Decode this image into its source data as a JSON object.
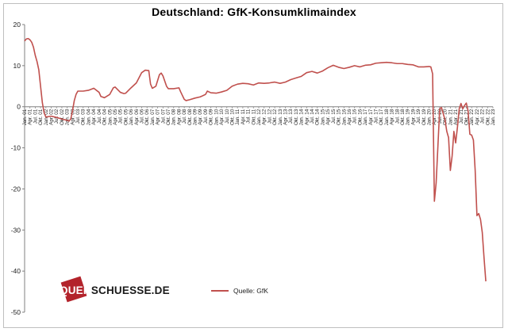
{
  "chart_data": {
    "type": "line",
    "title": "Deutschland:  GfK-Konsumklimaindex",
    "xlabel": "",
    "ylabel": "",
    "ylim": [
      -50,
      20
    ],
    "yticks": [
      20,
      10,
      0,
      -10,
      -20,
      -30,
      -40,
      -50
    ],
    "grid": false,
    "legend": "bottom-center",
    "x_tick_labels": [
      "Jan. 01",
      "Apr. 01",
      "Jul. 01",
      "Okt. 01",
      "Jan. 02",
      "Apr. 02",
      "Jul. 02",
      "Okt. 02",
      "Jan. 03",
      "Apr. 03",
      "Jul. 03",
      "Okt. 03",
      "Jan. 04",
      "Apr. 04",
      "Jul. 04",
      "Okt. 04",
      "Jan. 05",
      "Apr. 05",
      "Jul. 05",
      "Okt. 05",
      "Jan. 06",
      "Apr. 06",
      "Jul. 06",
      "Okt. 06",
      "Jan. 07",
      "Apr. 07",
      "Jul. 07",
      "Okt. 07",
      "Jan. 08",
      "Apr. 08",
      "Jul. 08",
      "Okt. 08",
      "Jan. 09",
      "Apr. 09",
      "Jul. 09",
      "Okt. 09",
      "Jan. 10",
      "Apr. 10",
      "Jul. 10",
      "Okt. 10",
      "Jan. 11",
      "Apr. 11",
      "Jul. 11",
      "Okt. 11",
      "Jan. 12",
      "Apr. 12",
      "Jul. 12",
      "Okt. 12",
      "Jan. 13",
      "Apr. 13",
      "Jul. 13",
      "Okt. 13",
      "Jan. 14",
      "Apr. 14",
      "Jul. 14",
      "Okt. 14",
      "Jan. 15",
      "Apr. 15",
      "Jul. 15",
      "Okt. 15",
      "Jan. 16",
      "Apr. 16",
      "Jul. 16",
      "Okt. 16",
      "Jan. 17",
      "Apr. 17",
      "Jul. 17",
      "Okt. 17",
      "Jan. 18",
      "Apr. 18",
      "Jul. 18",
      "Okt. 18",
      "Jan. 19",
      "Apr. 19",
      "Jul. 19",
      "Okt. 19",
      "Jan. 20",
      "Apr. 20",
      "Jul. 20",
      "Okt. 20",
      "Jan. 21",
      "Apr. 21",
      "Jul. 21",
      "Okt. 21",
      "Jan. 22",
      "Apr. 22",
      "Jul. 22",
      "Okt. 22",
      "Jan. 23"
    ],
    "series": [
      {
        "name": "Quelle: GfK",
        "color": "#c0504d",
        "points": [
          [
            "Jan. 01",
            16.0
          ],
          [
            "Feb. 01",
            16.5
          ],
          [
            "Mar. 01",
            16.6
          ],
          [
            "Apr. 01",
            16.3
          ],
          [
            "May 01",
            15.7
          ],
          [
            "Jun. 01",
            14.5
          ],
          [
            "Jul. 01",
            12.5
          ],
          [
            "Aug. 01",
            11.0
          ],
          [
            "Sep. 01",
            9.0
          ],
          [
            "Oct. 01",
            5.0
          ],
          [
            "Nov. 01",
            1.0
          ],
          [
            "Dec. 01",
            -1.5
          ],
          [
            "Jan. 02",
            -2.5
          ],
          [
            "Apr. 02",
            -2.3
          ],
          [
            "Jul. 02",
            -2.6
          ],
          [
            "Oct. 02",
            -3.0
          ],
          [
            "Jan. 03",
            -3.3
          ],
          [
            "Feb. 03",
            -3.5
          ],
          [
            "Mar. 03",
            -3.0
          ],
          [
            "Apr. 03",
            -1.0
          ],
          [
            "May 03",
            1.5
          ],
          [
            "Jun. 03",
            3.0
          ],
          [
            "Jul. 03",
            3.8
          ],
          [
            "Oct. 03",
            3.8
          ],
          [
            "Jan. 04",
            4.0
          ],
          [
            "Apr. 04",
            4.5
          ],
          [
            "Jul. 04",
            3.5
          ],
          [
            "Aug. 04",
            2.5
          ],
          [
            "Oct. 04",
            2.2
          ],
          [
            "Jan. 05",
            3.0
          ],
          [
            "Mar. 05",
            4.6
          ],
          [
            "Apr. 05",
            4.8
          ],
          [
            "Jul. 05",
            3.5
          ],
          [
            "Sep. 05",
            3.2
          ],
          [
            "Oct. 05",
            3.3
          ],
          [
            "Jan. 06",
            4.6
          ],
          [
            "Apr. 06",
            5.8
          ],
          [
            "Jul. 06",
            8.3
          ],
          [
            "Sep. 06",
            8.9
          ],
          [
            "Nov. 06",
            8.8
          ],
          [
            "Dec. 06",
            5.5
          ],
          [
            "Jan. 07",
            4.5
          ],
          [
            "Mar. 07",
            5.0
          ],
          [
            "May 07",
            7.8
          ],
          [
            "Jun. 07",
            8.2
          ],
          [
            "Jul. 07",
            7.5
          ],
          [
            "Sep. 07",
            5.0
          ],
          [
            "Oct. 07",
            4.4
          ],
          [
            "Jan. 08",
            4.4
          ],
          [
            "Apr. 08",
            4.6
          ],
          [
            "May 08",
            3.6
          ],
          [
            "Jul. 08",
            1.8
          ],
          [
            "Aug. 08",
            1.5
          ],
          [
            "Oct. 08",
            1.7
          ],
          [
            "Jan. 09",
            2.1
          ],
          [
            "Apr. 09",
            2.4
          ],
          [
            "Jul. 09",
            3.0
          ],
          [
            "Aug. 09",
            3.8
          ],
          [
            "Oct. 09",
            3.4
          ],
          [
            "Jan. 10",
            3.3
          ],
          [
            "Apr. 10",
            3.6
          ],
          [
            "Jul. 10",
            4.0
          ],
          [
            "Oct. 10",
            5.0
          ],
          [
            "Jan. 11",
            5.5
          ],
          [
            "Apr. 11",
            5.7
          ],
          [
            "Jul. 11",
            5.6
          ],
          [
            "Oct. 11",
            5.3
          ],
          [
            "Jan. 12",
            5.8
          ],
          [
            "Apr. 12",
            5.7
          ],
          [
            "Jul. 12",
            5.8
          ],
          [
            "Oct. 12",
            6.0
          ],
          [
            "Jan. 13",
            5.7
          ],
          [
            "Apr. 13",
            6.0
          ],
          [
            "Jul. 13",
            6.6
          ],
          [
            "Oct. 13",
            7.0
          ],
          [
            "Jan. 14",
            7.4
          ],
          [
            "Apr. 14",
            8.3
          ],
          [
            "Jul. 14",
            8.6
          ],
          [
            "Oct. 14",
            8.2
          ],
          [
            "Jan. 15",
            8.7
          ],
          [
            "Apr. 15",
            9.5
          ],
          [
            "Jul. 15",
            10.1
          ],
          [
            "Oct. 15",
            9.6
          ],
          [
            "Jan. 16",
            9.3
          ],
          [
            "Apr. 16",
            9.6
          ],
          [
            "Jul. 16",
            10.0
          ],
          [
            "Oct. 16",
            9.7
          ],
          [
            "Jan. 17",
            10.1
          ],
          [
            "Apr. 17",
            10.2
          ],
          [
            "Jul. 17",
            10.6
          ],
          [
            "Oct. 17",
            10.7
          ],
          [
            "Jan. 18",
            10.8
          ],
          [
            "Apr. 18",
            10.7
          ],
          [
            "Jul. 18",
            10.5
          ],
          [
            "Oct. 18",
            10.5
          ],
          [
            "Jan. 19",
            10.3
          ],
          [
            "Apr. 19",
            10.2
          ],
          [
            "Jul. 19",
            9.7
          ],
          [
            "Oct. 19",
            9.7
          ],
          [
            "Jan. 20",
            9.8
          ],
          [
            "Feb. 20",
            9.7
          ],
          [
            "Mar. 20",
            8.0
          ],
          [
            "Apr. 20",
            -23.0
          ],
          [
            "May 20",
            -18.5
          ],
          [
            "Jun. 20",
            -9.5
          ],
          [
            "Jul. 20",
            -0.5
          ],
          [
            "Aug. 20",
            -0.2
          ],
          [
            "Sep. 20",
            -1.7
          ],
          [
            "Oct. 20",
            -3.2
          ],
          [
            "Nov. 20",
            -6.0
          ],
          [
            "Dec. 20",
            -7.5
          ],
          [
            "Jan. 21",
            -15.5
          ],
          [
            "Feb. 21",
            -12.0
          ],
          [
            "Mar. 21",
            -6.0
          ],
          [
            "Apr. 21",
            -8.8
          ],
          [
            "May 21",
            -5.0
          ],
          [
            "Jun. 21",
            -0.5
          ],
          [
            "Jul. 21",
            0.8
          ],
          [
            "Aug. 21",
            -0.5
          ],
          [
            "Sep. 21",
            0.3
          ],
          [
            "Oct. 21",
            0.9
          ],
          [
            "Nov. 21",
            -1.0
          ],
          [
            "Dec. 21",
            -6.7
          ],
          [
            "Jan. 22",
            -6.9
          ],
          [
            "Feb. 22",
            -8.1
          ],
          [
            "Mar. 22",
            -15.5
          ],
          [
            "Apr. 22",
            -26.5
          ],
          [
            "May 22",
            -26.0
          ],
          [
            "Jun. 22",
            -27.4
          ],
          [
            "Jul. 22",
            -30.6
          ],
          [
            "Aug. 22",
            -36.8
          ],
          [
            "Sep. 22",
            -42.5
          ]
        ]
      }
    ]
  },
  "logo": {
    "part1": "QUER",
    "part2": "SCHUESSE.DE"
  }
}
